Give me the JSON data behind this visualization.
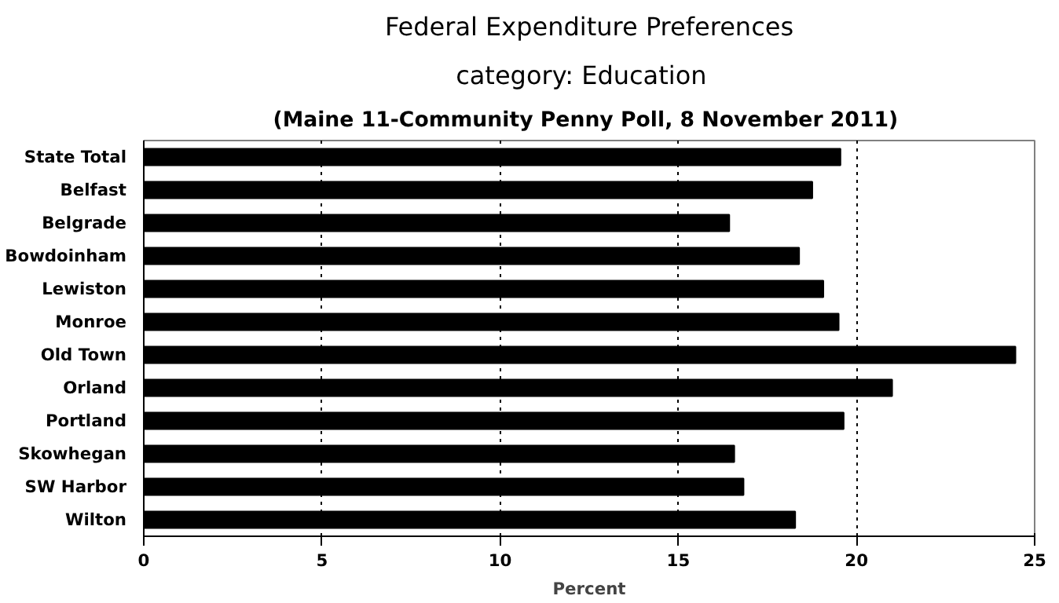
{
  "chart_data": {
    "type": "bar",
    "orientation": "horizontal",
    "title": "Federal Expenditure Preferences",
    "subtitle": "category:   Education",
    "annotations": [
      "(Maine 11-Community Penny Poll,  8 November 2011)"
    ],
    "xlabel": "Percent",
    "categories": [
      "State Total",
      "Belfast",
      "Belgrade",
      "Bowdoinham",
      "Lewiston",
      "Monroe",
      "Old Town",
      "Orland",
      "Portland",
      "Skowhegan",
      "SW Harbor",
      "Wilton"
    ],
    "values": [
      19.55,
      18.76,
      16.43,
      18.39,
      19.07,
      19.5,
      24.46,
      21.0,
      19.64,
      16.57,
      16.83,
      18.28
    ],
    "color": "#000000",
    "xlim": [
      0,
      25
    ],
    "xticks": [
      0,
      5,
      10,
      15,
      20,
      25
    ],
    "grid": "x"
  }
}
